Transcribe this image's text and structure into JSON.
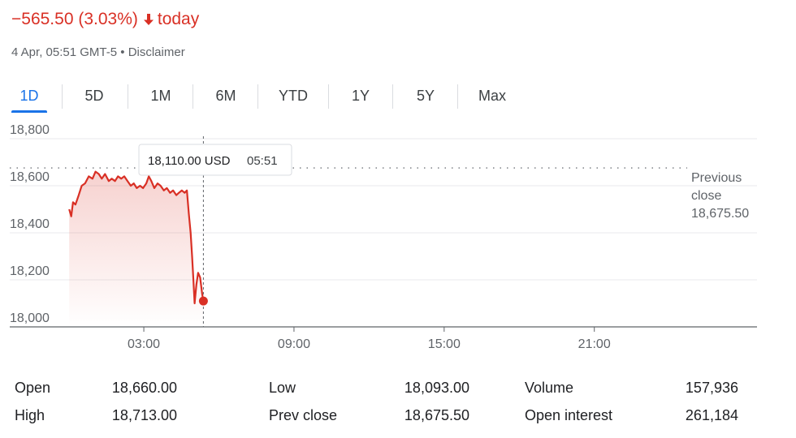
{
  "header": {
    "change": "−565.50 (3.03%)",
    "period": "today",
    "timestamp": "4 Apr, 05:51 GMT-5",
    "separator": "•",
    "disclaimer": "Disclaimer"
  },
  "tabs": [
    "1D",
    "5D",
    "1M",
    "6M",
    "YTD",
    "1Y",
    "5Y",
    "Max"
  ],
  "active_tab": "1D",
  "colors": {
    "negative": "#d93025",
    "accent": "#1a73e8"
  },
  "tooltip": {
    "price": "18,110.00 USD",
    "time": "05:51"
  },
  "prev_close_label": [
    "Previous",
    "close"
  ],
  "prev_close_value": "18,675.50",
  "chart_data": {
    "type": "line",
    "series": [
      {
        "points": [
          [
            0.02,
            18500
          ],
          [
            0.1,
            18470
          ],
          [
            0.17,
            18530
          ],
          [
            0.27,
            18520
          ],
          [
            0.4,
            18560
          ],
          [
            0.52,
            18600
          ],
          [
            0.65,
            18610
          ],
          [
            0.8,
            18640
          ],
          [
            0.95,
            18630
          ],
          [
            1.07,
            18660
          ],
          [
            1.2,
            18650
          ],
          [
            1.32,
            18630
          ],
          [
            1.45,
            18650
          ],
          [
            1.6,
            18620
          ],
          [
            1.72,
            18630
          ],
          [
            1.85,
            18620
          ],
          [
            1.97,
            18640
          ],
          [
            2.1,
            18630
          ],
          [
            2.22,
            18640
          ],
          [
            2.35,
            18620
          ],
          [
            2.48,
            18600
          ],
          [
            2.6,
            18610
          ],
          [
            2.72,
            18590
          ],
          [
            2.85,
            18600
          ],
          [
            2.97,
            18590
          ],
          [
            3.1,
            18610
          ],
          [
            3.2,
            18640
          ],
          [
            3.3,
            18620
          ],
          [
            3.42,
            18590
          ],
          [
            3.55,
            18610
          ],
          [
            3.67,
            18600
          ],
          [
            3.8,
            18580
          ],
          [
            3.92,
            18590
          ],
          [
            4.05,
            18570
          ],
          [
            4.17,
            18580
          ],
          [
            4.3,
            18560
          ],
          [
            4.4,
            18570
          ],
          [
            4.52,
            18580
          ],
          [
            4.63,
            18570
          ],
          [
            4.72,
            18580
          ],
          [
            4.8,
            18480
          ],
          [
            4.87,
            18400
          ],
          [
            4.93,
            18300
          ],
          [
            4.98,
            18200
          ],
          [
            5.03,
            18100
          ],
          [
            5.1,
            18180
          ],
          [
            5.17,
            18230
          ],
          [
            5.25,
            18210
          ],
          [
            5.33,
            18140
          ],
          [
            5.38,
            18110
          ]
        ]
      }
    ],
    "x_ticks": [
      "03:00",
      "09:00",
      "15:00",
      "21:00"
    ],
    "x_tick_hours": [
      3,
      9,
      15,
      21
    ],
    "x_range_hours": [
      -0.15,
      27.5
    ],
    "y_ticks": [
      "18,000",
      "18,200",
      "18,400",
      "18,600",
      "18,800"
    ],
    "y_tick_values": [
      18000,
      18200,
      18400,
      18600,
      18800
    ],
    "ylim": [
      18000,
      18850
    ],
    "reference_line": 18675.5,
    "current_point": [
      5.38,
      18110
    ],
    "grid": true,
    "legend": "none"
  },
  "stats": {
    "col1": [
      {
        "label": "Open",
        "value": "18,660.00"
      },
      {
        "label": "High",
        "value": "18,713.00"
      }
    ],
    "col2": [
      {
        "label": "Low",
        "value": "18,093.00"
      },
      {
        "label": "Prev close",
        "value": "18,675.50"
      }
    ],
    "col3": [
      {
        "label": "Volume",
        "value": "157,936"
      },
      {
        "label": "Open interest",
        "value": "261,184"
      }
    ]
  }
}
